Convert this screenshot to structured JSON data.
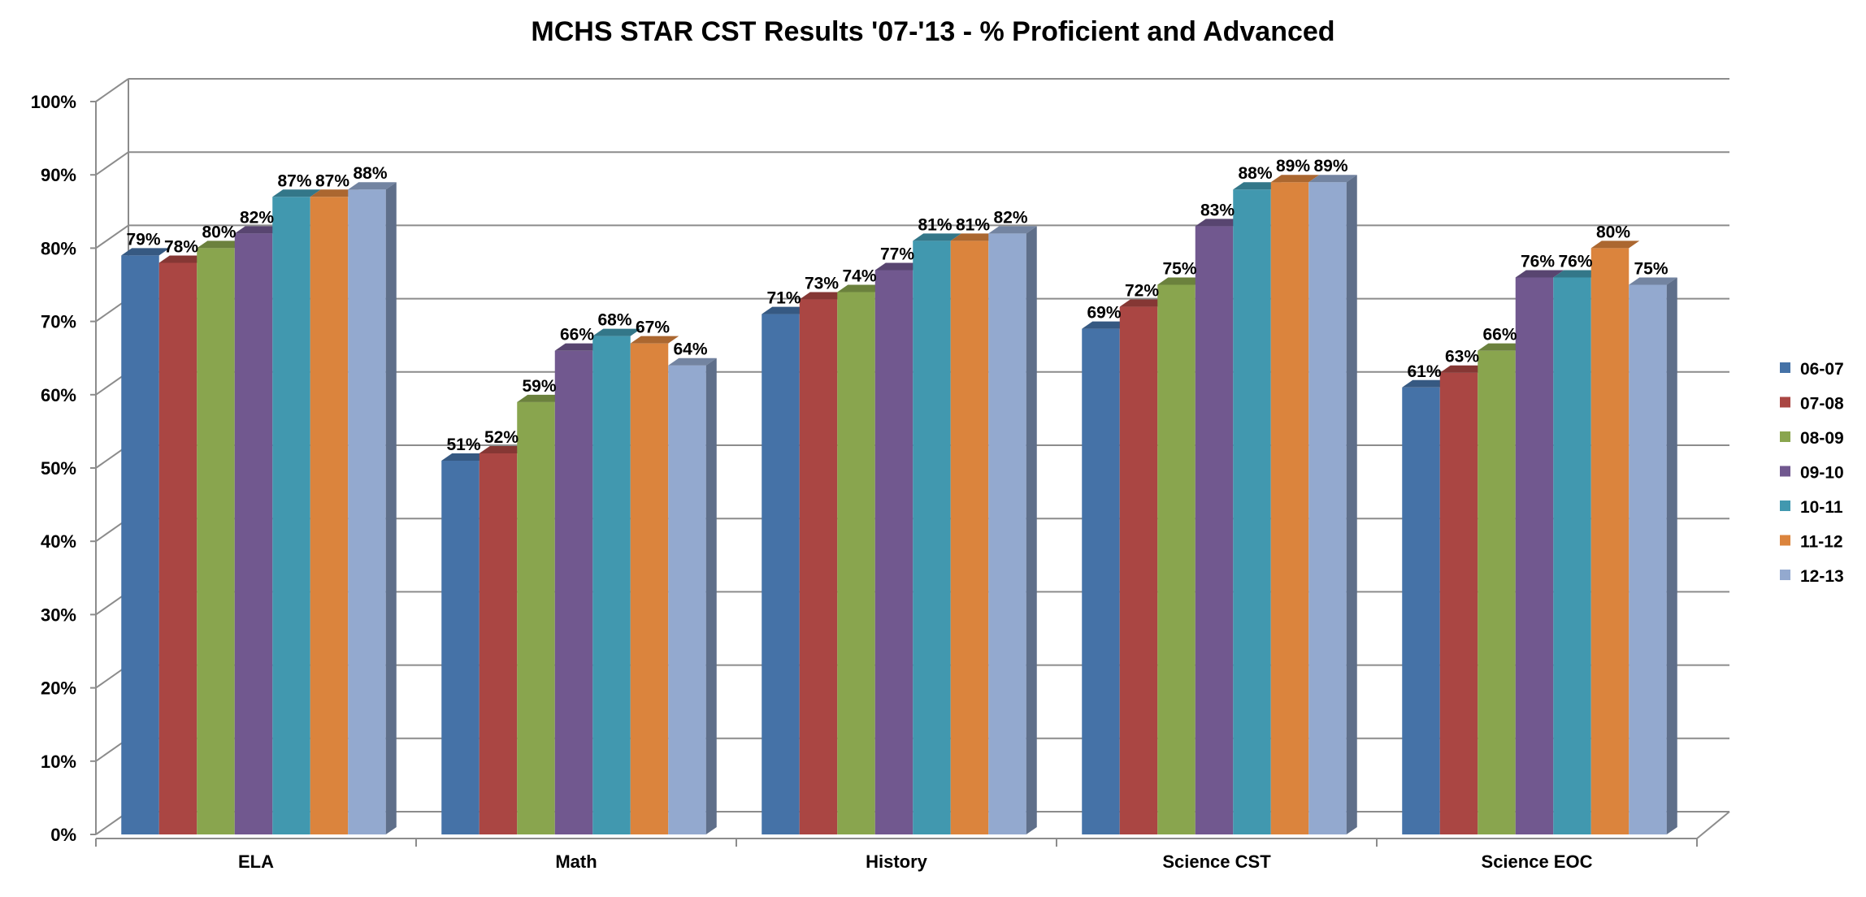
{
  "chart_data": {
    "type": "bar",
    "title": "MCHS STAR CST Results '07-'13 - % Proficient and Advanced",
    "xlabel": "",
    "ylabel": "",
    "ylim": [
      0,
      100
    ],
    "y_ticks": [
      "0%",
      "10%",
      "20%",
      "30%",
      "40%",
      "50%",
      "60%",
      "70%",
      "80%",
      "90%",
      "100%"
    ],
    "grid": true,
    "legend_position": "right",
    "categories": [
      "ELA",
      "Math",
      "History",
      "Science CST",
      "Science EOC"
    ],
    "series": [
      {
        "name": "06-07",
        "color": "#4572A7",
        "values": [
          79,
          51,
          71,
          69,
          61
        ]
      },
      {
        "name": "07-08",
        "color": "#AA4643",
        "values": [
          78,
          52,
          73,
          72,
          63
        ]
      },
      {
        "name": "08-09",
        "color": "#89A54E",
        "values": [
          80,
          59,
          74,
          75,
          66
        ]
      },
      {
        "name": "09-10",
        "color": "#71588F",
        "values": [
          82,
          66,
          77,
          83,
          76
        ]
      },
      {
        "name": "10-11",
        "color": "#4198AF",
        "values": [
          87,
          68,
          81,
          88,
          76
        ]
      },
      {
        "name": "11-12",
        "color": "#DB843D",
        "values": [
          87,
          67,
          81,
          89,
          80
        ]
      },
      {
        "name": "12-13",
        "color": "#93A9CF",
        "values": [
          88,
          64,
          82,
          89,
          75
        ]
      }
    ]
  }
}
